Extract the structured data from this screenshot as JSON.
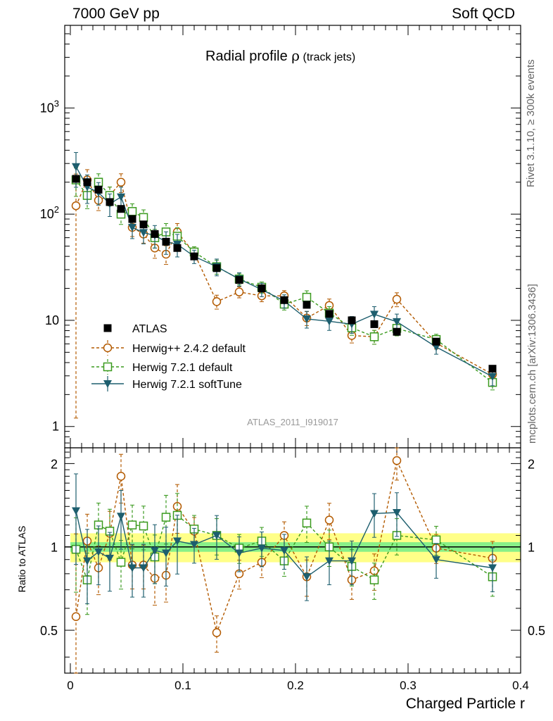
{
  "header": {
    "left": "7000 GeV pp",
    "right": "Soft QCD"
  },
  "side_labels": {
    "rivet": "Rivet 3.1.10, ≥ 300k events",
    "mcplots": "mcplots.cern.ch [arXiv:1306.3436]"
  },
  "chart_data": {
    "type": "scatter",
    "title_main": "Radial profile ",
    "title_rho": "ρ",
    "title_sub": " (track jets)",
    "analysis_id": "ATLAS_2011_I919017",
    "xlabel": "Charged Particle r",
    "xlim": [
      -0.005,
      0.4
    ],
    "xticks": [
      0,
      0.1,
      0.2,
      0.3,
      0.4
    ],
    "xtick_labels": [
      "0",
      "0.1",
      "0.2",
      "0.3",
      "0.4"
    ],
    "main": {
      "yscale": "log",
      "ylim": [
        0.63,
        6000
      ],
      "yticks": [
        1,
        10,
        100,
        1000
      ],
      "ytick_labels": [
        "1",
        "10",
        "10^2",
        "10^3"
      ]
    },
    "ratio": {
      "ylabel": "Ratio to ATLAS",
      "ylim": [
        0.35,
        2.28
      ],
      "yticks": [
        0.5,
        1,
        2
      ],
      "ytick_labels": [
        "0.5",
        "1",
        "2"
      ],
      "band_inner": 0.04,
      "band_outer": 0.12
    },
    "x": [
      0.005,
      0.015,
      0.025,
      0.035,
      0.045,
      0.055,
      0.065,
      0.075,
      0.085,
      0.095,
      0.11,
      0.13,
      0.15,
      0.17,
      0.19,
      0.21,
      0.23,
      0.25,
      0.27,
      0.29,
      0.325,
      0.375
    ],
    "series": [
      {
        "name": "ATLAS",
        "style": "data",
        "color": "#000000",
        "values": [
          215,
          200,
          170,
          130,
          112,
          90,
          80,
          65,
          55,
          48,
          40,
          31,
          24,
          20,
          15.5,
          14,
          11.5,
          10,
          9.2,
          7.8,
          6.3,
          3.5
        ]
      },
      {
        "name": "Herwig++ 2.4.2 default",
        "style": "circle-dashed",
        "color": "#b35a00",
        "values": [
          120,
          210,
          135,
          150,
          200,
          75,
          65,
          48,
          42,
          68,
          43,
          15,
          18.5,
          17,
          17,
          10.5,
          13.8,
          7.2,
          7.0,
          15.8,
          6.1,
          3.1
        ],
        "ratio": [
          0.56,
          1.05,
          0.84,
          1.12,
          1.8,
          0.86,
          0.86,
          0.77,
          0.79,
          1.4,
          1.14,
          0.49,
          0.8,
          0.88,
          1.1,
          0.78,
          1.25,
          0.76,
          0.82,
          2.05,
          0.99,
          0.91
        ]
      },
      {
        "name": "Herwig 7.2.1 default",
        "style": "square-dashed",
        "color": "#3a9a1e",
        "values": [
          210,
          150,
          200,
          150,
          100,
          106,
          93,
          60,
          68,
          62,
          44,
          32,
          24.5,
          20.5,
          14.2,
          16.5,
          11.7,
          8.5,
          7.0,
          8.4,
          6.6,
          2.6
        ],
        "ratio": [
          0.98,
          0.76,
          1.2,
          1.14,
          0.88,
          1.2,
          1.19,
          0.92,
          1.28,
          1.3,
          1.16,
          1.1,
          0.99,
          1.05,
          0.89,
          1.22,
          1.0,
          0.85,
          0.76,
          1.1,
          1.06,
          0.78
        ]
      },
      {
        "name": "Herwig 7.2.1 softTune",
        "style": "triangle-solid",
        "color": "#1d5e6e",
        "values": [
          280,
          180,
          160,
          125,
          145,
          75,
          67,
          63,
          55,
          52,
          40,
          32,
          24.5,
          19.5,
          15.2,
          10.3,
          9.8,
          9.2,
          11.4,
          9.7,
          5.6,
          2.95
        ],
        "ratio": [
          1.35,
          0.89,
          0.96,
          0.91,
          1.29,
          0.84,
          0.84,
          0.97,
          0.95,
          1.05,
          1.02,
          1.1,
          0.95,
          0.99,
          0.97,
          0.78,
          0.89,
          0.89,
          1.32,
          1.33,
          0.9,
          0.84
        ]
      }
    ]
  }
}
